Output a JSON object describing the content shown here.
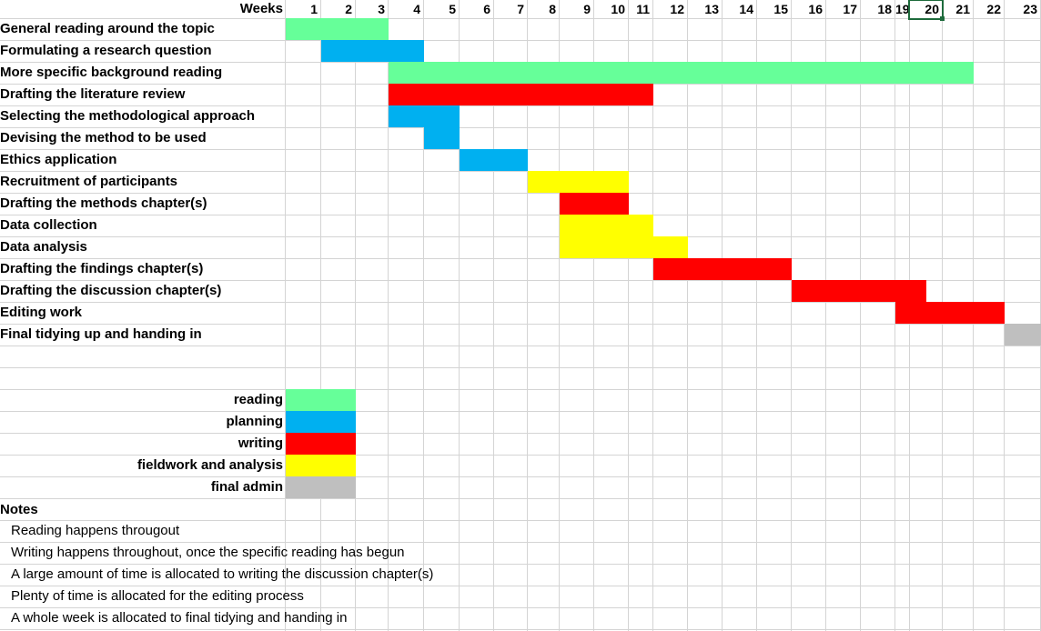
{
  "header": {
    "weeks_label": "Weeks"
  },
  "weeks": [
    "1",
    "2",
    "3",
    "4",
    "5",
    "6",
    "7",
    "8",
    "9",
    "10",
    "11",
    "12",
    "13",
    "14",
    "15",
    "16",
    "17",
    "18",
    "19",
    "20",
    "21",
    "22",
    "23"
  ],
  "colors": {
    "reading": "#66ff99",
    "planning": "#00b0f0",
    "writing": "#ff0000",
    "fieldwork": "#ffff00",
    "admin": "#bfbfbf",
    "grid": "#d4d4d4"
  },
  "tasks": [
    {
      "label": "General reading around the topic",
      "segments": [
        {
          "start": 1,
          "end": 3,
          "category": "reading"
        }
      ]
    },
    {
      "label": "Formulating a research question",
      "segments": [
        {
          "start": 2,
          "end": 4,
          "category": "planning"
        }
      ]
    },
    {
      "label": "More specific background reading",
      "segments": [
        {
          "start": 4,
          "end": 21,
          "category": "reading"
        }
      ]
    },
    {
      "label": "Drafting the literature review",
      "segments": [
        {
          "start": 4,
          "end": 11,
          "category": "writing"
        }
      ]
    },
    {
      "label": "Selecting the methodological approach",
      "segments": [
        {
          "start": 4,
          "end": 5,
          "category": "planning"
        }
      ]
    },
    {
      "label": "Devising the method to be used",
      "segments": [
        {
          "start": 5,
          "end": 5,
          "category": "planning"
        }
      ]
    },
    {
      "label": "Ethics application",
      "segments": [
        {
          "start": 6,
          "end": 7,
          "category": "planning"
        }
      ]
    },
    {
      "label": "Recruitment of participants",
      "segments": [
        {
          "start": 8,
          "end": 10,
          "category": "fieldwork"
        }
      ]
    },
    {
      "label": "Drafting the methods chapter(s)",
      "segments": [
        {
          "start": 9,
          "end": 10,
          "category": "writing"
        }
      ]
    },
    {
      "label": "Data collection",
      "segments": [
        {
          "start": 9,
          "end": 11,
          "category": "fieldwork"
        }
      ]
    },
    {
      "label": "Data analysis",
      "segments": [
        {
          "start": 9,
          "end": 12,
          "category": "fieldwork"
        }
      ]
    },
    {
      "label": "Drafting the findings chapter(s)",
      "segments": [
        {
          "start": 12,
          "end": 15,
          "category": "writing"
        }
      ]
    },
    {
      "label": "Drafting the discussion chapter(s)",
      "segments": [
        {
          "start": 16,
          "end": 19,
          "category": "writing"
        },
        {
          "start": 20,
          "end": 20,
          "category": "writing",
          "fraction": 0.5
        }
      ]
    },
    {
      "label": "Editing work",
      "segments": [
        {
          "start": 19,
          "end": 22,
          "category": "writing"
        }
      ]
    },
    {
      "label": "Final tidying up and handing in",
      "segments": [
        {
          "start": 23,
          "end": 23,
          "category": "admin"
        }
      ]
    }
  ],
  "legend": [
    {
      "label": "reading",
      "category": "reading"
    },
    {
      "label": "planning",
      "category": "planning"
    },
    {
      "label": "writing",
      "category": "writing"
    },
    {
      "label": "fieldwork and analysis",
      "category": "fieldwork"
    },
    {
      "label": "final admin",
      "category": "admin"
    }
  ],
  "notes": {
    "title": "Notes",
    "items": [
      "Reading happens througout",
      "Writing happens throughout, once the specific reading has begun",
      "A large amount of time is allocated to writing the discussion chapter(s)",
      "Plenty of time is allocated for the editing process",
      "A whole week is allocated to final tidying and handing in"
    ]
  },
  "selection": {
    "row": 0,
    "week": 20
  }
}
